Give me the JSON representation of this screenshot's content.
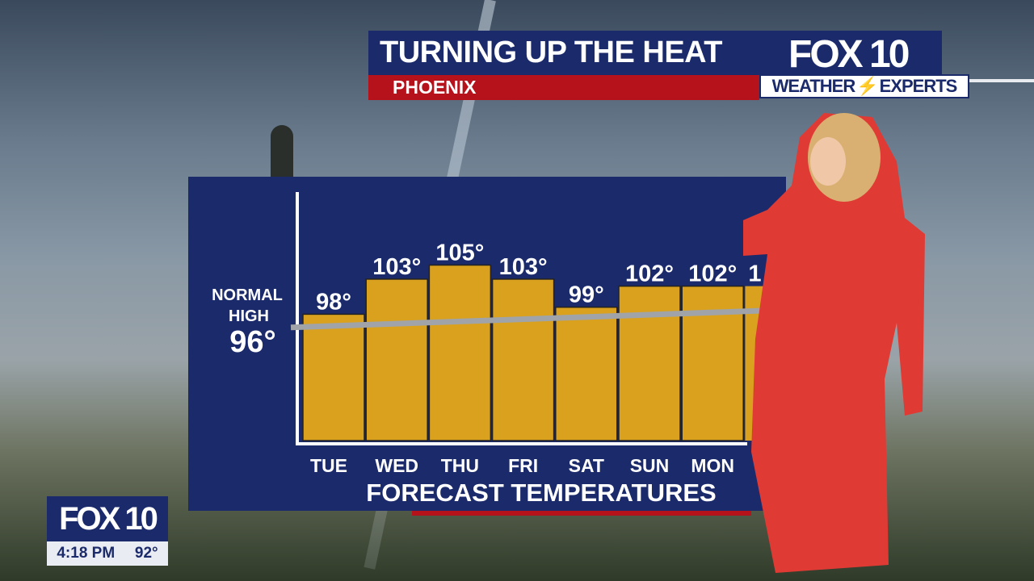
{
  "header": {
    "title": "TURNING UP THE HEAT",
    "subtitle": "PHOENIX",
    "logo": "FOX 10",
    "weather_badge_left": "WEATHER",
    "weather_badge_right": "EXPERTS"
  },
  "bug": {
    "logo": "FOX 10",
    "time": "4:18 PM",
    "temp": "92°"
  },
  "colors": {
    "navy": "#1b2a6b",
    "red": "#b5121b",
    "bar": "#d9a11e",
    "normal_line": "#a0a4a8"
  },
  "chart_data": {
    "type": "bar",
    "title": "FORECAST TEMPERATURES",
    "categories": [
      "TUE",
      "WED",
      "THU",
      "FRI",
      "SAT",
      "SUN",
      "MON"
    ],
    "values": [
      98,
      103,
      105,
      103,
      99,
      102,
      102
    ],
    "labels": [
      "98°",
      "103°",
      "105°",
      "103°",
      "99°",
      "102°",
      "102°"
    ],
    "partial_label": "1",
    "reference_line": {
      "label_line1": "NORMAL",
      "label_line2": "HIGH",
      "value": 96,
      "value_label": "96°"
    },
    "ylim": [
      80,
      108
    ],
    "grid": false,
    "legend": "none"
  }
}
